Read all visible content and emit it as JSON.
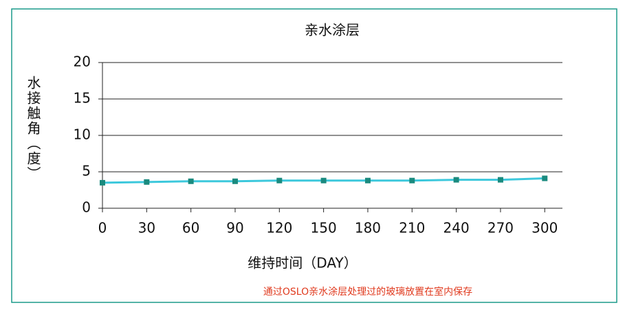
{
  "chart_data": {
    "type": "line",
    "title": "亲水涂层",
    "x_label": "维持时间（DAY）",
    "y_label": "水接触角（度）",
    "note": "通过OSLO亲水涂层处理过的玻璃放置在室内保存",
    "x": [
      0,
      30,
      60,
      90,
      120,
      150,
      180,
      210,
      240,
      270,
      300
    ],
    "values": [
      3.5,
      3.6,
      3.7,
      3.7,
      3.8,
      3.8,
      3.8,
      3.8,
      3.9,
      3.9,
      4.1
    ],
    "color": "#3cc8dc",
    "marker_color": "#1a8a7e",
    "xlim": [
      0,
      312
    ],
    "xticks": [
      0,
      30,
      60,
      90,
      120,
      150,
      180,
      210,
      240,
      270,
      300
    ],
    "ylim": [
      0,
      20
    ],
    "yticks": [
      0,
      5,
      10,
      15,
      20
    ],
    "grid": true
  }
}
